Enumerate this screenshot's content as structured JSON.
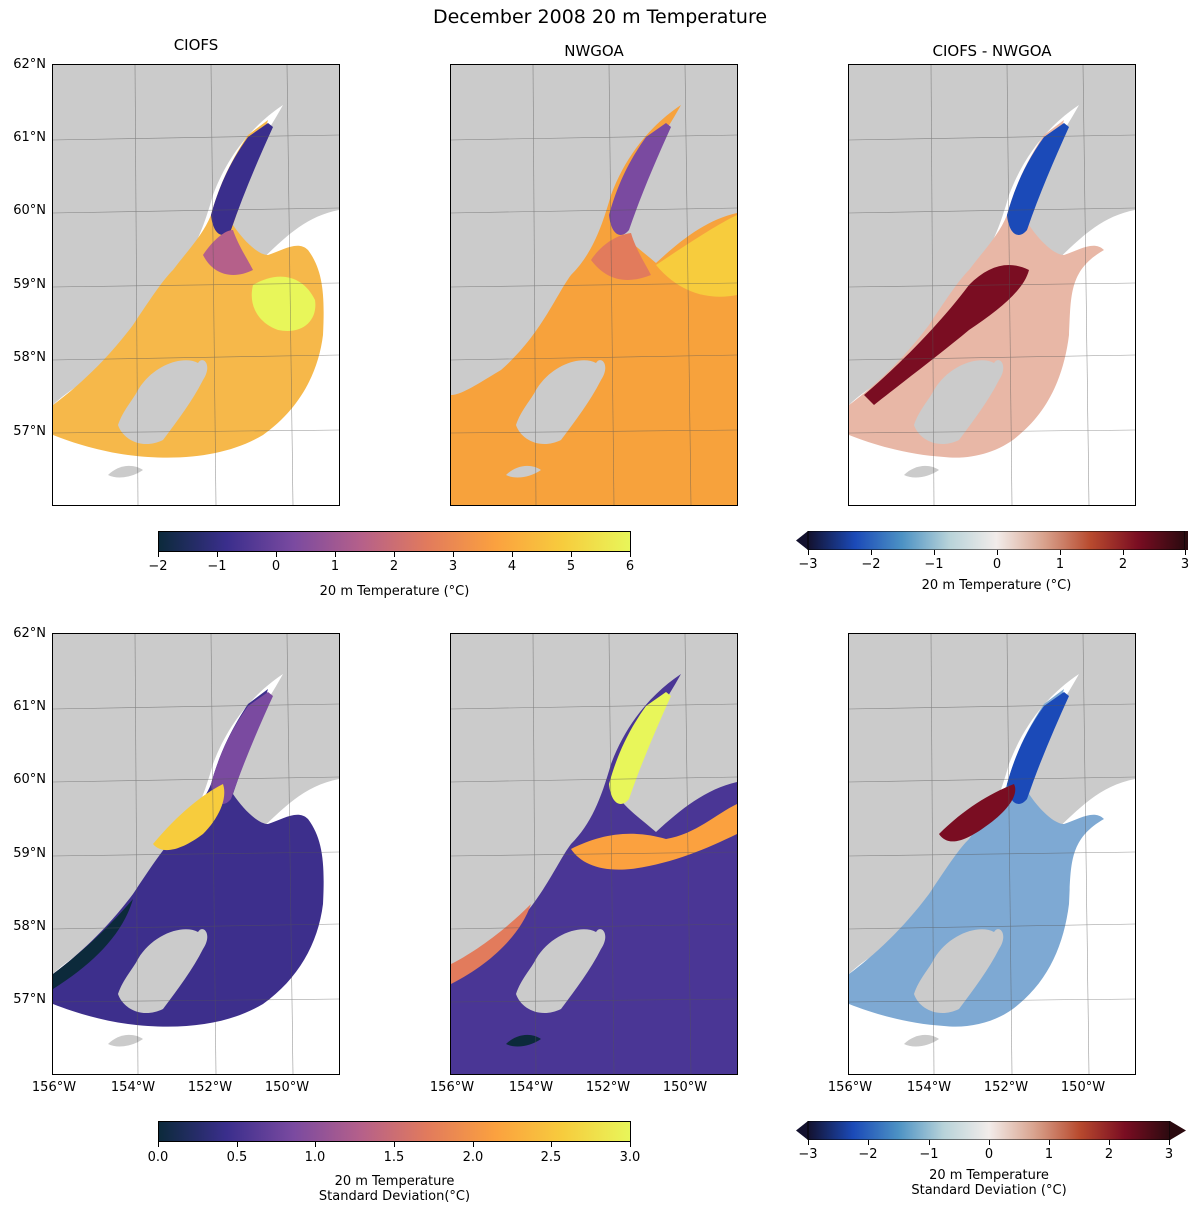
{
  "title": "December 2008 20 m Temperature",
  "columns": [
    "CIOFS",
    "NWGOA",
    "CIOFS - NWGOA"
  ],
  "lat_labels": [
    "62°N",
    "61°N",
    "60°N",
    "59°N",
    "58°N",
    "57°N"
  ],
  "lon_labels": [
    "156°W",
    "154°W",
    "152°W",
    "150°W"
  ],
  "colorbars": {
    "temp": {
      "ticks": [
        "−2",
        "−1",
        "0",
        "1",
        "2",
        "3",
        "4",
        "5",
        "6"
      ],
      "label": "20 m Temperature (°C)",
      "colormap": [
        "#0c2a3b",
        "#3a2e8c",
        "#7a4aa0",
        "#b5608a",
        "#e27b5c",
        "#fba13f",
        "#f7cc3d",
        "#e8f65a"
      ]
    },
    "diff_temp": {
      "ticks": [
        "−3",
        "−2",
        "−1",
        "0",
        "1",
        "2",
        "3"
      ],
      "label": "20 m Temperature (°C)",
      "colormap": [
        "#13112e",
        "#1b4ab8",
        "#4c92c4",
        "#b8d3d9",
        "#f2ecea",
        "#d9a38e",
        "#b84a2e",
        "#7a0d22",
        "#2b0a0f"
      ]
    },
    "std": {
      "ticks": [
        "0.0",
        "0.5",
        "1.0",
        "1.5",
        "2.0",
        "2.5",
        "3.0"
      ],
      "label_line1": "20 m Temperature",
      "label_line2": "Standard Deviation(°C)",
      "colormap": [
        "#0c2a3b",
        "#3a2e8c",
        "#7a4aa0",
        "#b5608a",
        "#e27b5c",
        "#fba13f",
        "#f7cc3d",
        "#e8f65a"
      ]
    },
    "diff_std": {
      "ticks": [
        "−3",
        "−2",
        "−1",
        "0",
        "1",
        "2",
        "3"
      ],
      "label_line1": "20 m Temperature",
      "label_line2": "Standard Deviation (°C)",
      "colormap": [
        "#13112e",
        "#1b4ab8",
        "#4c92c4",
        "#b8d3d9",
        "#f2ecea",
        "#d9a38e",
        "#b84a2e",
        "#7a0d22",
        "#2b0a0f"
      ]
    }
  },
  "colors": {
    "land": "#cbcbcb",
    "panel_fill": {
      "ciofs_temp": "#f6b84a",
      "nwgoa_temp": "#f7a23c",
      "diff_temp": "#e8b7a6",
      "ciofs_std": "#3d2f8c",
      "nwgoa_std": "#4a3695",
      "diff_std": "#7ea9d3"
    }
  }
}
